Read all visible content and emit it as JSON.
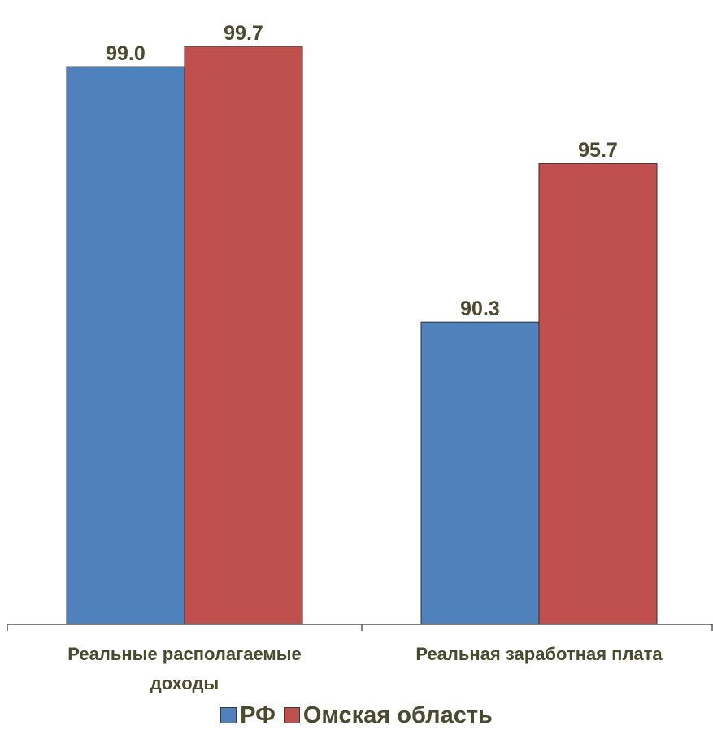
{
  "chart_data": {
    "type": "bar",
    "categories": [
      "Реальные располагаемые доходы",
      "Реальная заработная плата"
    ],
    "category_lines": [
      [
        "Реальные располагаемые",
        "доходы"
      ],
      [
        "Реальная заработная плата"
      ]
    ],
    "series": [
      {
        "name": "РФ",
        "values": [
          99.0,
          90.3
        ],
        "labels": [
          "99.0",
          "90.3"
        ],
        "color": "#4f81bd"
      },
      {
        "name": "Омская область",
        "values": [
          99.7,
          95.7
        ],
        "labels": [
          "99.7",
          "95.7"
        ],
        "color": "#c0504d"
      }
    ],
    "ylim": [
      80,
      100
    ],
    "grid": false,
    "legend_position": "bottom",
    "title": "",
    "xlabel": "",
    "ylabel": ""
  }
}
